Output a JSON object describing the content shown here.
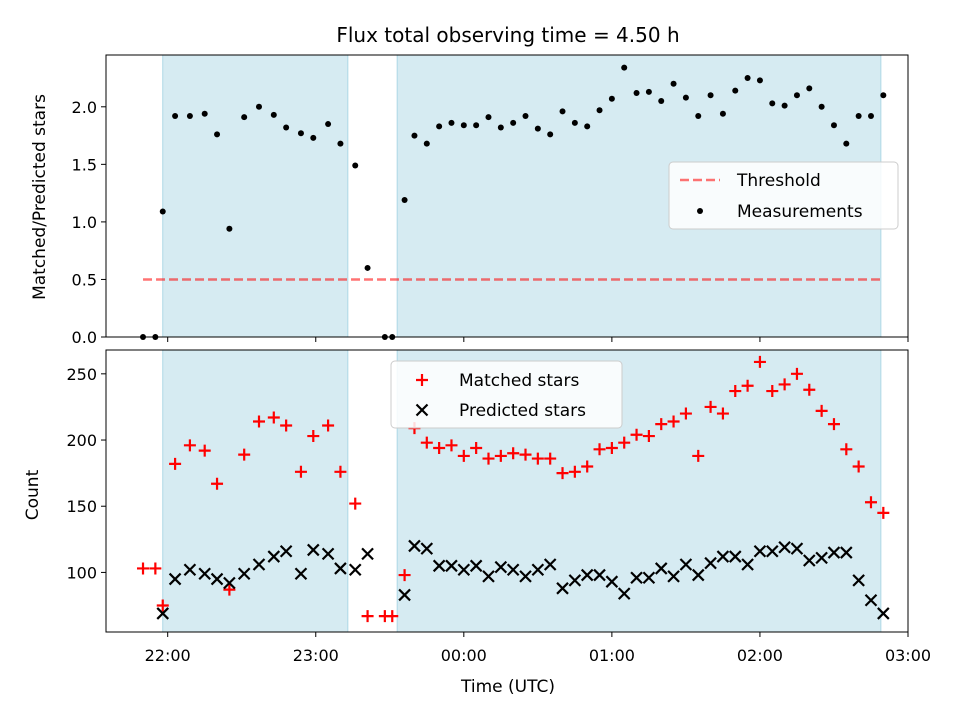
{
  "title": "Flux total observing time = 4.50 h",
  "colors": {
    "shade": "#add8e6",
    "threshold": "#ff0000",
    "measurement": "#000000",
    "matched": "#ff0000",
    "predicted": "#000000"
  },
  "chart_data": [
    {
      "type": "scatter",
      "panel": "top",
      "ylabel": "Matched/Predicted stars",
      "ylim": [
        0,
        2.45
      ],
      "yticks": [
        "0.0",
        "0.5",
        "1.0",
        "1.5",
        "2.0"
      ],
      "xlim": [
        "21:35",
        "03:00"
      ],
      "shaded_intervals": [
        [
          "21:58",
          "23:13"
        ],
        [
          "23:33",
          "02:49"
        ]
      ],
      "legend": {
        "placement": "center-right",
        "entries": [
          "Threshold",
          "Measurements"
        ]
      },
      "threshold": {
        "name": "Threshold",
        "value": 0.5,
        "x_range": [
          "21:50",
          "02:49"
        ],
        "style": "dashed"
      },
      "series": [
        {
          "name": "Measurements",
          "points": [
            [
              "21:50",
              0
            ],
            [
              "21:55",
              0
            ],
            [
              "21:58",
              1.09
            ],
            [
              "22:03",
              1.92
            ],
            [
              "22:09",
              1.92
            ],
            [
              "22:15",
              1.94
            ],
            [
              "22:20",
              1.76
            ],
            [
              "22:25",
              0.94
            ],
            [
              "22:31",
              1.91
            ],
            [
              "22:37",
              2.0
            ],
            [
              "22:43",
              1.93
            ],
            [
              "22:48",
              1.82
            ],
            [
              "22:54",
              1.77
            ],
            [
              "22:59",
              1.73
            ],
            [
              "23:05",
              1.85
            ],
            [
              "23:10",
              1.68
            ],
            [
              "23:16",
              1.49
            ],
            [
              "23:21",
              0.6
            ],
            [
              "23:28",
              0
            ],
            [
              "23:31",
              0
            ],
            [
              "23:36",
              1.19
            ],
            [
              "23:40",
              1.75
            ],
            [
              "23:45",
              1.68
            ],
            [
              "23:50",
              1.83
            ],
            [
              "23:55",
              1.86
            ],
            [
              "00:00",
              1.84
            ],
            [
              "00:05",
              1.84
            ],
            [
              "00:10",
              1.91
            ],
            [
              "00:15",
              1.82
            ],
            [
              "00:20",
              1.86
            ],
            [
              "00:25",
              1.92
            ],
            [
              "00:30",
              1.81
            ],
            [
              "00:35",
              1.76
            ],
            [
              "00:40",
              1.96
            ],
            [
              "00:45",
              1.86
            ],
            [
              "00:50",
              1.83
            ],
            [
              "00:55",
              1.97
            ],
            [
              "01:00",
              2.07
            ],
            [
              "01:05",
              2.34
            ],
            [
              "01:10",
              2.12
            ],
            [
              "01:15",
              2.13
            ],
            [
              "01:20",
              2.05
            ],
            [
              "01:25",
              2.2
            ],
            [
              "01:30",
              2.08
            ],
            [
              "01:35",
              1.92
            ],
            [
              "01:40",
              2.1
            ],
            [
              "01:45",
              1.94
            ],
            [
              "01:50",
              2.14
            ],
            [
              "01:55",
              2.25
            ],
            [
              "02:00",
              2.23
            ],
            [
              "02:05",
              2.03
            ],
            [
              "02:10",
              2.01
            ],
            [
              "02:15",
              2.1
            ],
            [
              "02:20",
              2.16
            ],
            [
              "02:25",
              2.0
            ],
            [
              "02:30",
              1.84
            ],
            [
              "02:35",
              1.68
            ],
            [
              "02:40",
              1.92
            ],
            [
              "02:45",
              1.92
            ],
            [
              "02:50",
              2.1
            ]
          ]
        }
      ]
    },
    {
      "type": "scatter",
      "panel": "bottom",
      "xlabel": "Time (UTC)",
      "ylabel": "Count",
      "ylim": [
        55,
        268
      ],
      "yticks": [
        "100",
        "150",
        "200",
        "250"
      ],
      "xlim": [
        "21:35",
        "03:00"
      ],
      "xticks": [
        "22:00",
        "23:00",
        "00:00",
        "01:00",
        "02:00",
        "03:00"
      ],
      "shaded_intervals": [
        [
          "21:58",
          "23:13"
        ],
        [
          "23:33",
          "02:49"
        ]
      ],
      "legend": {
        "placement": "top-center",
        "entries": [
          "Matched stars",
          "Predicted stars"
        ]
      },
      "series": [
        {
          "name": "Matched stars",
          "marker": "+",
          "points": [
            [
              "21:50",
              103
            ],
            [
              "21:55",
              103
            ],
            [
              "21:58",
              75
            ],
            [
              "22:03",
              182
            ],
            [
              "22:09",
              196
            ],
            [
              "22:15",
              192
            ],
            [
              "22:20",
              167
            ],
            [
              "22:25",
              87
            ],
            [
              "22:31",
              189
            ],
            [
              "22:37",
              214
            ],
            [
              "22:43",
              217
            ],
            [
              "22:48",
              211
            ],
            [
              "22:54",
              176
            ],
            [
              "22:59",
              203
            ],
            [
              "23:05",
              211
            ],
            [
              "23:10",
              176
            ],
            [
              "23:16",
              152
            ],
            [
              "23:21",
              67
            ],
            [
              "23:28",
              67
            ],
            [
              "23:31",
              67
            ],
            [
              "23:36",
              98
            ],
            [
              "23:40",
              209
            ],
            [
              "23:45",
              198
            ],
            [
              "23:50",
              194
            ],
            [
              "23:55",
              196
            ],
            [
              "00:00",
              188
            ],
            [
              "00:05",
              194
            ],
            [
              "00:10",
              186
            ],
            [
              "00:15",
              188
            ],
            [
              "00:20",
              190
            ],
            [
              "00:25",
              189
            ],
            [
              "00:30",
              186
            ],
            [
              "00:35",
              186
            ],
            [
              "00:40",
              175
            ],
            [
              "00:45",
              176
            ],
            [
              "00:50",
              180
            ],
            [
              "00:55",
              193
            ],
            [
              "01:00",
              194
            ],
            [
              "01:05",
              198
            ],
            [
              "01:10",
              204
            ],
            [
              "01:15",
              203
            ],
            [
              "01:20",
              212
            ],
            [
              "01:25",
              214
            ],
            [
              "01:30",
              220
            ],
            [
              "01:35",
              188
            ],
            [
              "01:40",
              225
            ],
            [
              "01:45",
              220
            ],
            [
              "01:50",
              237
            ],
            [
              "01:55",
              241
            ],
            [
              "02:00",
              259
            ],
            [
              "02:05",
              237
            ],
            [
              "02:10",
              242
            ],
            [
              "02:15",
              250
            ],
            [
              "02:20",
              238
            ],
            [
              "02:25",
              222
            ],
            [
              "02:30",
              212
            ],
            [
              "02:35",
              193
            ],
            [
              "02:40",
              180
            ],
            [
              "02:45",
              153
            ],
            [
              "02:50",
              145
            ]
          ]
        },
        {
          "name": "Predicted stars",
          "marker": "x",
          "points": [
            [
              "21:58",
              69
            ],
            [
              "22:03",
              95
            ],
            [
              "22:09",
              102
            ],
            [
              "22:15",
              99
            ],
            [
              "22:20",
              95
            ],
            [
              "22:25",
              92
            ],
            [
              "22:31",
              99
            ],
            [
              "22:37",
              106
            ],
            [
              "22:43",
              112
            ],
            [
              "22:48",
              116
            ],
            [
              "22:54",
              99
            ],
            [
              "22:59",
              117
            ],
            [
              "23:05",
              114
            ],
            [
              "23:10",
              103
            ],
            [
              "23:16",
              102
            ],
            [
              "23:21",
              114
            ],
            [
              "23:36",
              83
            ],
            [
              "23:40",
              120
            ],
            [
              "23:45",
              118
            ],
            [
              "23:50",
              105
            ],
            [
              "23:55",
              105
            ],
            [
              "00:00",
              102
            ],
            [
              "00:05",
              105
            ],
            [
              "00:10",
              97
            ],
            [
              "00:15",
              104
            ],
            [
              "00:20",
              102
            ],
            [
              "00:25",
              97
            ],
            [
              "00:30",
              102
            ],
            [
              "00:35",
              106
            ],
            [
              "00:40",
              88
            ],
            [
              "00:45",
              94
            ],
            [
              "00:50",
              98
            ],
            [
              "00:55",
              98
            ],
            [
              "01:00",
              93
            ],
            [
              "01:05",
              84
            ],
            [
              "01:10",
              96
            ],
            [
              "01:15",
              96
            ],
            [
              "01:20",
              103
            ],
            [
              "01:25",
              97
            ],
            [
              "01:30",
              106
            ],
            [
              "01:35",
              98
            ],
            [
              "01:40",
              107
            ],
            [
              "01:45",
              112
            ],
            [
              "01:50",
              112
            ],
            [
              "01:55",
              106
            ],
            [
              "02:00",
              116
            ],
            [
              "02:05",
              116
            ],
            [
              "02:10",
              119
            ],
            [
              "02:15",
              118
            ],
            [
              "02:20",
              109
            ],
            [
              "02:25",
              111
            ],
            [
              "02:30",
              115
            ],
            [
              "02:35",
              115
            ],
            [
              "02:40",
              94
            ],
            [
              "02:45",
              79
            ],
            [
              "02:50",
              69
            ]
          ]
        }
      ]
    }
  ]
}
